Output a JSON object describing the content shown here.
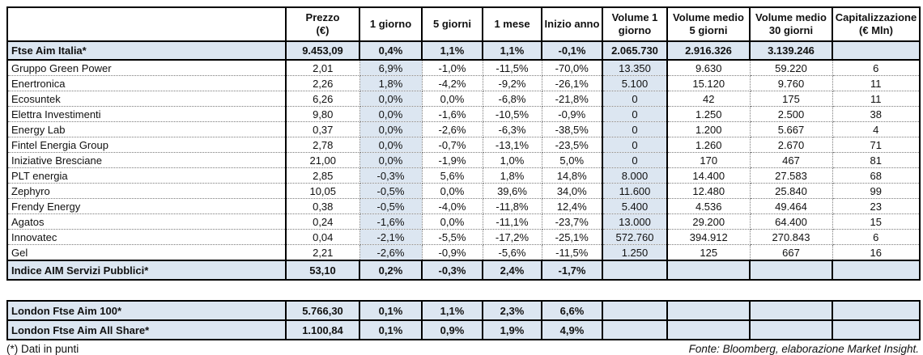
{
  "page": {
    "footnote": "(*) Dati in punti",
    "source": "Fonte: Bloomberg, elaborazione Market Insight."
  },
  "colors": {
    "highlight_blue": "#dce6f1",
    "border_black": "#000000",
    "dotted_gray": "#7a7a7a"
  },
  "main_table": {
    "headers": [
      "",
      "Prezzo\n(€)",
      "1 giorno",
      "5 giorni",
      "1 mese",
      "Inizio anno",
      "Volume 1\ngiorno",
      "Volume medio\n5 giorni",
      "Volume medio\n30 giorni",
      "Capitalizzazione\n(€ Mln)"
    ],
    "index_row": {
      "name": "Ftse Aim Italia*",
      "values": [
        "9.453,09",
        "0,4%",
        "1,1%",
        "1,1%",
        "-0,1%",
        "2.065.730",
        "2.916.326",
        "3.139.246",
        ""
      ]
    },
    "rows": [
      {
        "name": "Gruppo Green Power",
        "values": [
          "2,01",
          "6,9%",
          "-1,0%",
          "-11,5%",
          "-70,0%",
          "13.350",
          "9.630",
          "59.220",
          "6"
        ]
      },
      {
        "name": "Enertronica",
        "values": [
          "2,26",
          "1,8%",
          "-4,2%",
          "-9,2%",
          "-26,1%",
          "5.100",
          "15.120",
          "9.760",
          "11"
        ]
      },
      {
        "name": "Ecosuntek",
        "values": [
          "6,26",
          "0,0%",
          "0,0%",
          "-6,8%",
          "-21,8%",
          "0",
          "42",
          "175",
          "11"
        ]
      },
      {
        "name": "Elettra Investimenti",
        "values": [
          "9,80",
          "0,0%",
          "-1,6%",
          "-10,5%",
          "-0,9%",
          "0",
          "1.250",
          "2.500",
          "38"
        ]
      },
      {
        "name": "Energy Lab",
        "values": [
          "0,37",
          "0,0%",
          "-2,6%",
          "-6,3%",
          "-38,5%",
          "0",
          "1.200",
          "5.667",
          "4"
        ]
      },
      {
        "name": "Fintel Energia Group",
        "values": [
          "2,78",
          "0,0%",
          "-0,7%",
          "-13,1%",
          "-23,5%",
          "0",
          "1.260",
          "2.670",
          "71"
        ]
      },
      {
        "name": "Iniziative Bresciane",
        "values": [
          "21,00",
          "0,0%",
          "-1,9%",
          "1,0%",
          "5,0%",
          "0",
          "170",
          "467",
          "81"
        ]
      },
      {
        "name": "PLT energia",
        "values": [
          "2,85",
          "-0,3%",
          "5,6%",
          "1,8%",
          "14,8%",
          "8.000",
          "14.400",
          "27.583",
          "68"
        ]
      },
      {
        "name": "Zephyro",
        "values": [
          "10,05",
          "-0,5%",
          "0,0%",
          "39,6%",
          "34,0%",
          "11.600",
          "12.480",
          "25.840",
          "99"
        ]
      },
      {
        "name": "Frendy Energy",
        "values": [
          "0,38",
          "-0,5%",
          "-4,0%",
          "-11,8%",
          "12,4%",
          "5.400",
          "4.536",
          "49.464",
          "23"
        ]
      },
      {
        "name": "Agatos",
        "values": [
          "0,24",
          "-1,6%",
          "0,0%",
          "-11,1%",
          "-23,7%",
          "13.000",
          "29.200",
          "64.400",
          "15"
        ]
      },
      {
        "name": "Innovatec",
        "values": [
          "0,04",
          "-2,1%",
          "-5,5%",
          "-17,2%",
          "-25,1%",
          "572.760",
          "394.912",
          "270.843",
          "6"
        ]
      },
      {
        "name": "Gel",
        "values": [
          "2,21",
          "-2,6%",
          "-0,9%",
          "-5,6%",
          "-11,5%",
          "1.250",
          "125",
          "667",
          "16"
        ]
      }
    ],
    "summary_row": {
      "name": "Indice AIM Servizi Pubblici*",
      "values": [
        "53,10",
        "0,2%",
        "-0,3%",
        "2,4%",
        "-1,7%",
        "",
        "",
        "",
        ""
      ]
    }
  },
  "london_table": {
    "rows": [
      {
        "name": "London Ftse Aim 100*",
        "values": [
          "5.766,30",
          "0,1%",
          "1,1%",
          "2,3%",
          "6,6%",
          "",
          "",
          "",
          ""
        ]
      },
      {
        "name": "London Ftse Aim All Share*",
        "values": [
          "1.100,84",
          "0,1%",
          "0,9%",
          "1,9%",
          "4,9%",
          "",
          "",
          "",
          ""
        ]
      }
    ]
  }
}
